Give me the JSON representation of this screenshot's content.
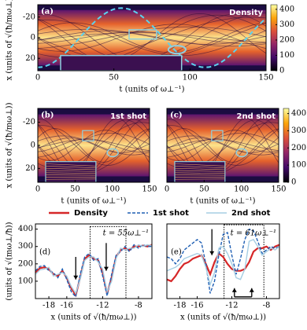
{
  "chart_data": [
    {
      "type": "heatmap",
      "panel_label": "(a)",
      "title": "Density",
      "xlabel": "t (units of ω⊥⁻¹)",
      "ylabel": "x (units of √(ħ/mω⊥))",
      "xlim": [
        0,
        150
      ],
      "xticks": [
        0,
        50,
        100,
        150
      ],
      "ylim": [
        -32,
        32
      ],
      "yticks": [
        -20,
        0,
        20
      ],
      "y_inverted": true,
      "clim": [
        0,
        430
      ],
      "cticks": [
        0,
        100,
        200,
        300,
        400
      ]
    },
    {
      "type": "heatmap",
      "panel_label": "(b)",
      "title": "1st shot",
      "xlabel": "t (units of ω⊥⁻¹)",
      "ylabel": "x (units of √(ħ/mω⊥))",
      "xlim": [
        0,
        150
      ],
      "xticks": [
        0,
        50,
        100,
        150
      ],
      "ylim": [
        -32,
        32
      ],
      "yticks": [
        -20,
        0,
        20
      ],
      "y_inverted": true
    },
    {
      "type": "heatmap",
      "panel_label": "(c)",
      "title": "2nd shot",
      "xlabel": "t (units of ω⊥⁻¹)",
      "xlim": [
        0,
        150
      ],
      "xticks": [
        0,
        50,
        100,
        150
      ],
      "ylim": [
        -32,
        32
      ],
      "y_inverted": true,
      "clim": [
        0,
        430
      ],
      "cticks": [
        0,
        100,
        200,
        300,
        400
      ]
    },
    {
      "type": "line",
      "panel_label": "(d)",
      "annotation": "t = 55ω⊥⁻¹",
      "xlabel": "x (units of √(ħ/mω⊥))",
      "ylabel": "(units of √(mω⊥/ħ))",
      "xlim": [
        -19.5,
        -6.5
      ],
      "xticks": [
        -18,
        -16,
        -12,
        -8
      ],
      "ylim": [
        0,
        430
      ],
      "yticks": [
        100,
        200,
        300,
        400
      ],
      "x": [
        -19.5,
        -19,
        -18.5,
        -18,
        -17.5,
        -17,
        -16.5,
        -16,
        -15.5,
        -15,
        -14.5,
        -14,
        -13.5,
        -13,
        -12.5,
        -12,
        -11.5,
        -11,
        -10.5,
        -10,
        -9.5,
        -9,
        -8.5,
        -8,
        -7.5,
        -7,
        -6.5
      ],
      "series": [
        {
          "name": "Density",
          "color": "#d62728",
          "dash": false,
          "values": [
            150,
            175,
            180,
            170,
            140,
            130,
            160,
            120,
            60,
            20,
            120,
            230,
            250,
            230,
            220,
            150,
            30,
            120,
            240,
            280,
            290,
            280,
            300,
            300,
            305,
            300,
            310
          ]
        },
        {
          "name": "1st shot",
          "color": "#1f5fb4",
          "dash": true,
          "values": [
            160,
            185,
            190,
            160,
            150,
            120,
            170,
            110,
            40,
            10,
            140,
            240,
            260,
            220,
            230,
            130,
            15,
            140,
            250,
            270,
            300,
            270,
            310,
            290,
            310,
            300,
            300
          ]
        },
        {
          "name": "2nd shot",
          "color": "#a6cee3",
          "dash": false,
          "values": [
            140,
            165,
            170,
            180,
            130,
            140,
            150,
            130,
            70,
            30,
            110,
            220,
            240,
            240,
            210,
            170,
            40,
            100,
            230,
            290,
            280,
            290,
            290,
            310,
            300,
            310,
            305
          ]
        }
      ]
    },
    {
      "type": "line",
      "panel_label": "(e)",
      "annotation": "t = 61ω⊥⁻¹",
      "xlabel": "x (units of √(ħ/mω⊥))",
      "xlim": [
        -19.5,
        -6.5
      ],
      "xticks": [
        -18,
        -16,
        -12,
        -8
      ],
      "ylim": [
        0,
        430
      ],
      "x": [
        -19.5,
        -19,
        -18.5,
        -18,
        -17.5,
        -17,
        -16.5,
        -16,
        -15.5,
        -15,
        -14.5,
        -14,
        -13.5,
        -13,
        -12.5,
        -12,
        -11.5,
        -11,
        -10.5,
        -10,
        -9.5,
        -9,
        -8.5,
        -8,
        -7.5,
        -7,
        -6.5
      ],
      "series": [
        {
          "color": "#d62728",
          "dash": false,
          "values": [
            110,
            100,
            130,
            170,
            200,
            210,
            230,
            240,
            250,
            200,
            140,
            210,
            260,
            240,
            200,
            170,
            160,
            160,
            170,
            210,
            270,
            290,
            290,
            300,
            280,
            300,
            310
          ]
        },
        {
          "color": "#1f5fb4",
          "dash": true,
          "values": [
            240,
            230,
            200,
            230,
            280,
            300,
            320,
            340,
            320,
            200,
            30,
            100,
            250,
            370,
            380,
            250,
            140,
            230,
            340,
            400,
            390,
            330,
            260,
            280,
            300,
            290,
            300
          ]
        },
        {
          "color": "#a6cee3",
          "dash": false,
          "values": [
            160,
            170,
            180,
            200,
            230,
            240,
            250,
            260,
            250,
            180,
            80,
            150,
            290,
            300,
            260,
            200,
            120,
            110,
            170,
            330,
            340,
            300,
            250,
            270,
            290,
            280,
            300
          ]
        }
      ]
    }
  ]
}
